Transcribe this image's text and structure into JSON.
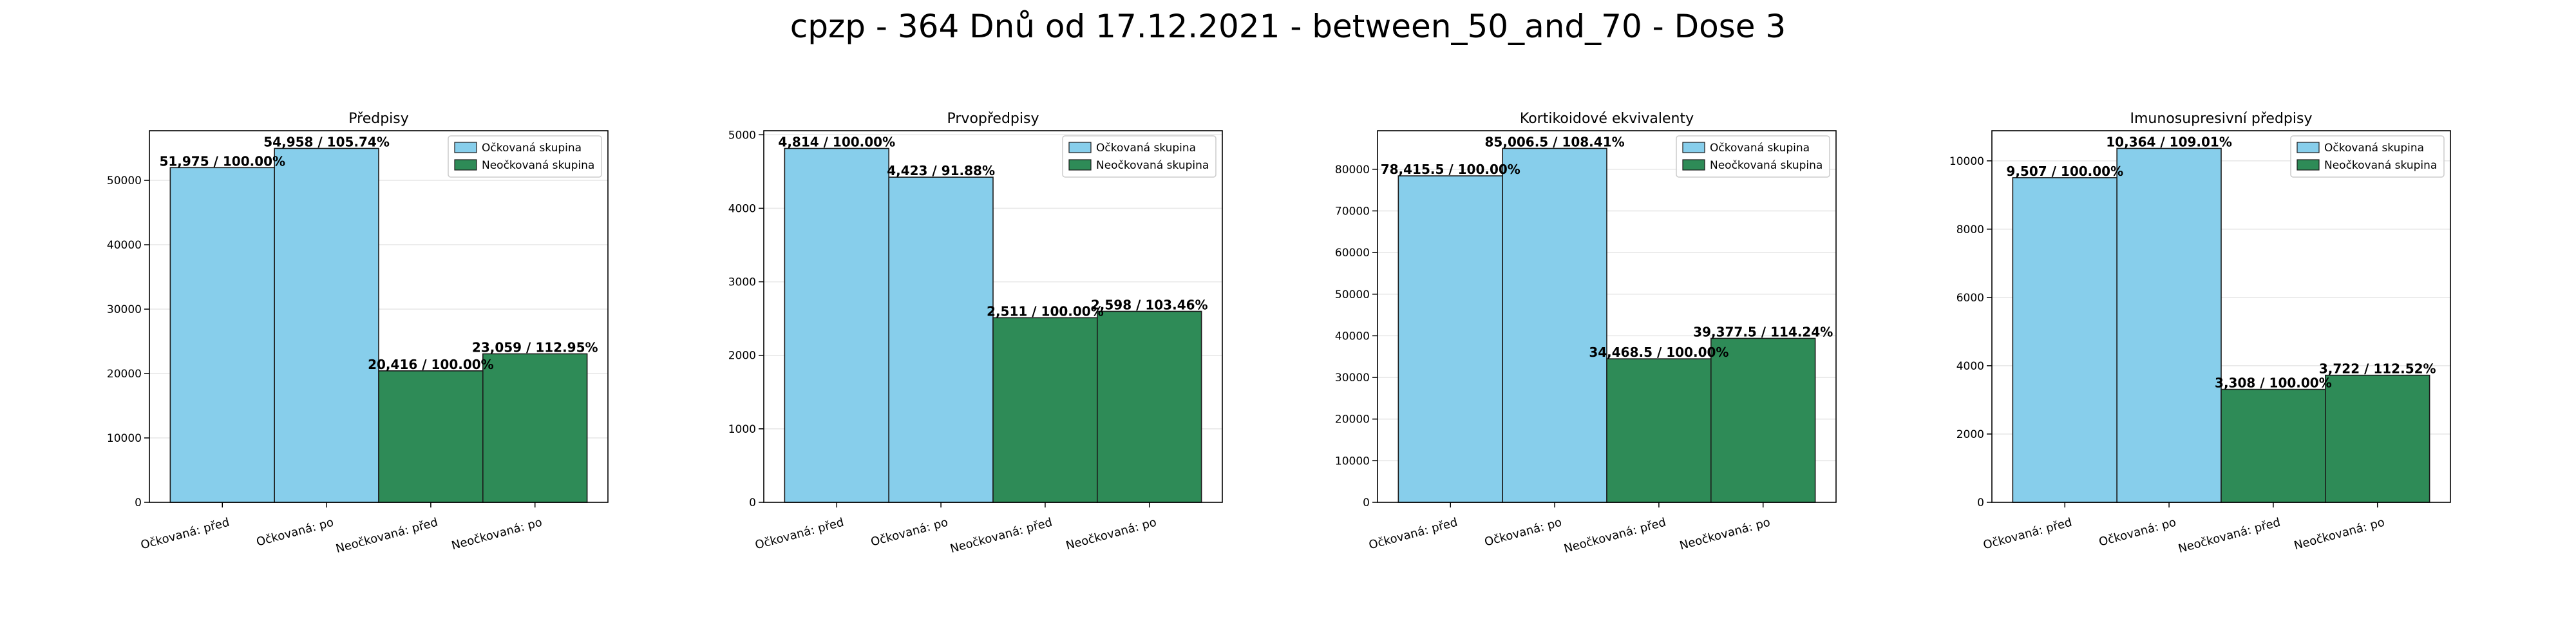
{
  "figure_title": "cpzp - 364 Dnů od 17.12.2021 - between_50_and_70 - Dose 3",
  "colors": {
    "vaccinated": "#87ceeb",
    "unvaccinated": "#2e8b57",
    "edge": "#1a1a1a",
    "grid": "#e6e6e6"
  },
  "legend_entries": [
    "Očkovaná skupina",
    "Neočkovaná skupina"
  ],
  "chart_data": [
    {
      "type": "bar",
      "title": "Předpisy",
      "categories": [
        "Očkovaná: před",
        "Očkovaná: po",
        "Neočkovaná: před",
        "Neočkovaná: po"
      ],
      "values": [
        51975,
        54958,
        20416,
        23059
      ],
      "bar_labels": [
        "51,975 / 100.00%",
        "54,958 / 105.74%",
        "20,416 / 100.00%",
        "23,059 / 112.95%"
      ],
      "bar_groups": [
        "vaccinated",
        "vaccinated",
        "unvaccinated",
        "unvaccinated"
      ],
      "ylim": [
        0,
        57706
      ],
      "yticks": [
        0,
        10000,
        20000,
        30000,
        40000,
        50000
      ],
      "legend": "top-right",
      "grid": true
    },
    {
      "type": "bar",
      "title": "Prvopředpisy",
      "categories": [
        "Očkovaná: před",
        "Očkovaná: po",
        "Neočkovaná: před",
        "Neočkovaná: po"
      ],
      "values": [
        4814,
        4423,
        2511,
        2598
      ],
      "bar_labels": [
        "4,814 / 100.00%",
        "4,423 / 91.88%",
        "2,511 / 100.00%",
        "2,598 / 103.46%"
      ],
      "bar_groups": [
        "vaccinated",
        "vaccinated",
        "unvaccinated",
        "unvaccinated"
      ],
      "ylim": [
        0,
        5055
      ],
      "yticks": [
        0,
        1000,
        2000,
        3000,
        4000,
        5000
      ],
      "legend": "top-right",
      "grid": true
    },
    {
      "type": "bar",
      "title": "Kortikoidové ekvivalenty",
      "categories": [
        "Očkovaná: před",
        "Očkovaná: po",
        "Neočkovaná: před",
        "Neočkovaná: po"
      ],
      "values": [
        78415.5,
        85006.5,
        34468.5,
        39377.5
      ],
      "bar_labels": [
        "78,415.5 / 100.00%",
        "85,006.5 / 108.41%",
        "34,468.5 / 100.00%",
        "39,377.5 / 114.24%"
      ],
      "bar_groups": [
        "vaccinated",
        "vaccinated",
        "unvaccinated",
        "unvaccinated"
      ],
      "ylim": [
        0,
        89257
      ],
      "yticks": [
        0,
        10000,
        20000,
        30000,
        40000,
        50000,
        60000,
        70000,
        80000
      ],
      "legend": "top-right",
      "grid": true
    },
    {
      "type": "bar",
      "title": "Imunosupresivní předpisy",
      "categories": [
        "Očkovaná: před",
        "Očkovaná: po",
        "Neočkovaná: před",
        "Neočkovaná: po"
      ],
      "values": [
        9507,
        10364,
        3308,
        3722
      ],
      "bar_labels": [
        "9,507 / 100.00%",
        "10,364 / 109.01%",
        "3,308 / 100.00%",
        "3,722 / 112.52%"
      ],
      "bar_groups": [
        "vaccinated",
        "vaccinated",
        "unvaccinated",
        "unvaccinated"
      ],
      "ylim": [
        0,
        10882
      ],
      "yticks": [
        0,
        2000,
        4000,
        6000,
        8000,
        10000
      ],
      "legend": "top-right",
      "grid": true
    }
  ]
}
